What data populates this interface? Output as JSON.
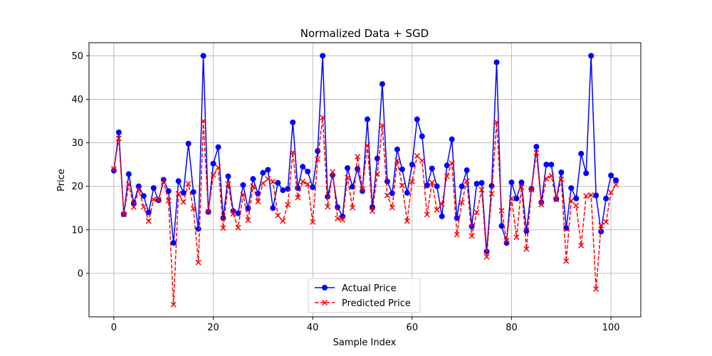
{
  "chart_data": {
    "type": "line",
    "title": "Normalized Data + SGD",
    "xlabel": "Sample Index",
    "ylabel": "Price",
    "xlim": [
      -5,
      106
    ],
    "ylim": [
      -10,
      53
    ],
    "xticks": [
      0,
      20,
      40,
      60,
      80,
      100
    ],
    "yticks": [
      0,
      10,
      20,
      30,
      40,
      50
    ],
    "grid": true,
    "legend_position": "bottom-center",
    "x": [
      0,
      1,
      2,
      3,
      4,
      5,
      6,
      7,
      8,
      9,
      10,
      11,
      12,
      13,
      14,
      15,
      16,
      17,
      18,
      19,
      20,
      21,
      22,
      23,
      24,
      25,
      26,
      27,
      28,
      29,
      30,
      31,
      32,
      33,
      34,
      35,
      36,
      37,
      38,
      39,
      40,
      41,
      42,
      43,
      44,
      45,
      46,
      47,
      48,
      49,
      50,
      51,
      52,
      53,
      54,
      55,
      56,
      57,
      58,
      59,
      60,
      61,
      62,
      63,
      64,
      65,
      66,
      67,
      68,
      69,
      70,
      71,
      72,
      73,
      74,
      75,
      76,
      77,
      78,
      79,
      80,
      81,
      82,
      83,
      84,
      85,
      86,
      87,
      88,
      89,
      90,
      91,
      92,
      93,
      94,
      95,
      96,
      97,
      98,
      99,
      100,
      101
    ],
    "series": [
      {
        "name": "Actual Price",
        "color": "#0000ff",
        "linestyle": "solid",
        "marker": "circle",
        "values": [
          23.6,
          32.4,
          13.6,
          22.8,
          16.1,
          20.0,
          17.8,
          14.0,
          19.6,
          16.8,
          21.5,
          18.9,
          7.0,
          21.2,
          18.5,
          29.8,
          18.7,
          10.2,
          50.0,
          14.1,
          25.2,
          29.0,
          12.7,
          22.3,
          14.3,
          13.8,
          20.3,
          14.9,
          21.7,
          18.3,
          23.1,
          23.8,
          15.0,
          20.8,
          19.1,
          19.4,
          34.7,
          19.6,
          24.5,
          23.4,
          19.8,
          28.1,
          50.0,
          17.6,
          22.6,
          15.2,
          13.1,
          24.2,
          19.9,
          24.0,
          18.9,
          35.4,
          15.2,
          26.4,
          43.5,
          21.1,
          18.4,
          28.5,
          23.9,
          18.5,
          25.0,
          35.4,
          31.5,
          20.2,
          24.1,
          20.0,
          13.1,
          24.8,
          30.8,
          12.7,
          20.0,
          23.7,
          10.8,
          20.6,
          20.8,
          5.0,
          20.1,
          48.5,
          10.9,
          7.0,
          20.9,
          17.2,
          20.9,
          9.7,
          19.4,
          29.1,
          16.3,
          25.0,
          25.0,
          17.1,
          23.2,
          10.4,
          19.6,
          17.2,
          27.5,
          23.0,
          50.0,
          17.9,
          9.6,
          17.2,
          22.5,
          21.4
        ]
      },
      {
        "name": "Predicted Price",
        "color": "#ff0000",
        "linestyle": "dashed",
        "marker": "x",
        "values": [
          24.0,
          31.0,
          13.5,
          20.5,
          15.2,
          19.2,
          15.3,
          12.0,
          17.0,
          16.9,
          21.0,
          16.7,
          -7.2,
          18.3,
          16.4,
          20.6,
          14.9,
          2.5,
          35.0,
          14.2,
          22.6,
          24.3,
          10.4,
          20.5,
          13.7,
          10.5,
          18.1,
          12.2,
          20.0,
          16.5,
          20.7,
          21.7,
          21.1,
          13.3,
          12.0,
          15.8,
          27.8,
          17.4,
          21.1,
          20.5,
          11.8,
          26.2,
          35.8,
          15.3,
          23.3,
          12.6,
          12.3,
          22.0,
          15.1,
          26.8,
          19.3,
          29.4,
          14.3,
          22.8,
          34.0,
          17.9,
          15.1,
          25.9,
          20.2,
          12.0,
          21.1,
          27.0,
          25.9,
          13.5,
          20.9,
          14.6,
          15.9,
          22.3,
          25.3,
          8.9,
          16.3,
          21.2,
          8.6,
          14.0,
          19.2,
          3.8,
          18.3,
          34.7,
          14.4,
          7.5,
          17.2,
          8.3,
          19.8,
          5.6,
          19.2,
          27.7,
          15.8,
          21.8,
          22.4,
          17.0,
          21.6,
          2.8,
          16.7,
          15.6,
          6.4,
          17.8,
          18.0,
          -3.6,
          11.0,
          11.8,
          18.6,
          20.4
        ]
      }
    ]
  }
}
